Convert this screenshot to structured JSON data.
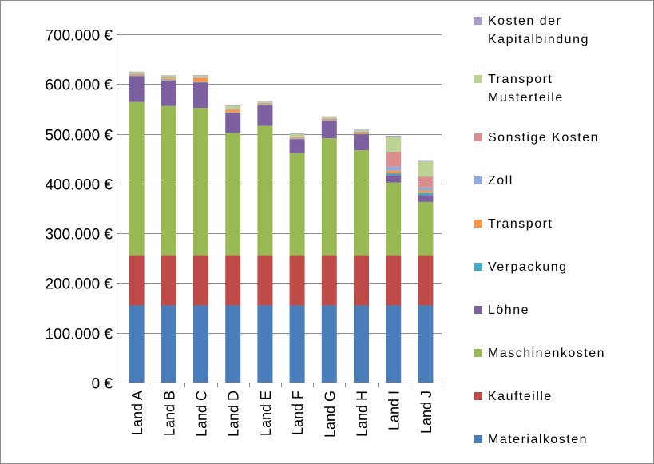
{
  "chart_data": {
    "type": "bar",
    "stacked": true,
    "title": "",
    "xlabel": "",
    "ylabel": "",
    "ylim": [
      0,
      700000
    ],
    "yticks": [
      0,
      100000,
      200000,
      300000,
      400000,
      500000,
      600000,
      700000
    ],
    "ytick_labels": [
      "0 €",
      "100.000 €",
      "200.000 €",
      "300.000 €",
      "400.000 €",
      "500.000 €",
      "600.000 €",
      "700.000 €"
    ],
    "grid": true,
    "legend_position": "right",
    "categories": [
      "Land A",
      "Land B",
      "Land C",
      "Land D",
      "Land E",
      "Land F",
      "Land G",
      "Land H",
      "Land I",
      "Land J"
    ],
    "series": [
      {
        "name": "Materialkosten",
        "color": "#4a7ebb",
        "values": [
          155000,
          155000,
          155000,
          155000,
          155000,
          155000,
          155000,
          155000,
          155000,
          155000
        ]
      },
      {
        "name": "Kaufteille",
        "color": "#be4b48",
        "values": [
          101000,
          101000,
          101000,
          101000,
          101000,
          101000,
          101000,
          101000,
          101000,
          101000
        ]
      },
      {
        "name": "Maschinenkosten",
        "color": "#98b954",
        "values": [
          308000,
          300000,
          296000,
          246000,
          260000,
          205000,
          235000,
          211000,
          146000,
          107000
        ]
      },
      {
        "name": "Löhne",
        "color": "#7d60a0",
        "values": [
          52000,
          51000,
          51000,
          40000,
          41000,
          28000,
          35000,
          32000,
          15000,
          14000
        ]
      },
      {
        "name": "Verpackung",
        "color": "#46aac5",
        "values": [
          1000,
          1000,
          1000,
          1000,
          1000,
          1000,
          1000,
          1000,
          4000,
          4000
        ]
      },
      {
        "name": "Transport",
        "color": "#f79646",
        "values": [
          2000,
          2500,
          8000,
          5000,
          2000,
          2000,
          2000,
          2500,
          5000,
          5000
        ]
      },
      {
        "name": "Zoll",
        "color": "#8faadc",
        "values": [
          1000,
          1000,
          1000,
          1000,
          1000,
          1000,
          1000,
          1000,
          8000,
          6000
        ]
      },
      {
        "name": "Sonstige Kosten",
        "color": "#da8f8e",
        "values": [
          1000,
          1000,
          1000,
          1000,
          1000,
          1000,
          1000,
          1000,
          30000,
          22000
        ]
      },
      {
        "name": "Transport Musterteile",
        "color": "#bcd393",
        "values": [
          3000,
          4000,
          3000,
          6000,
          3000,
          6000,
          3000,
          3000,
          30000,
          31000
        ]
      },
      {
        "name": "Kosten der Kapitalbindung",
        "color": "#a899c6",
        "values": [
          1000,
          1000,
          1000,
          1000,
          1000,
          1000,
          1000,
          1000,
          2000,
          2000
        ]
      }
    ]
  },
  "legend": {
    "entries": [
      {
        "lines": [
          "Kosten der",
          "Kapitalbindung"
        ]
      },
      {
        "lines": [
          "Transport",
          "Musterteile"
        ]
      },
      {
        "lines": [
          "Sonstige Kosten"
        ]
      },
      {
        "lines": [
          "Zoll"
        ]
      },
      {
        "lines": [
          "Transport"
        ]
      },
      {
        "lines": [
          "Verpackung"
        ]
      },
      {
        "lines": [
          "Löhne"
        ]
      },
      {
        "lines": [
          "Maschinenkosten"
        ]
      },
      {
        "lines": [
          "Kaufteille"
        ]
      },
      {
        "lines": [
          "Materialkosten"
        ]
      }
    ]
  }
}
